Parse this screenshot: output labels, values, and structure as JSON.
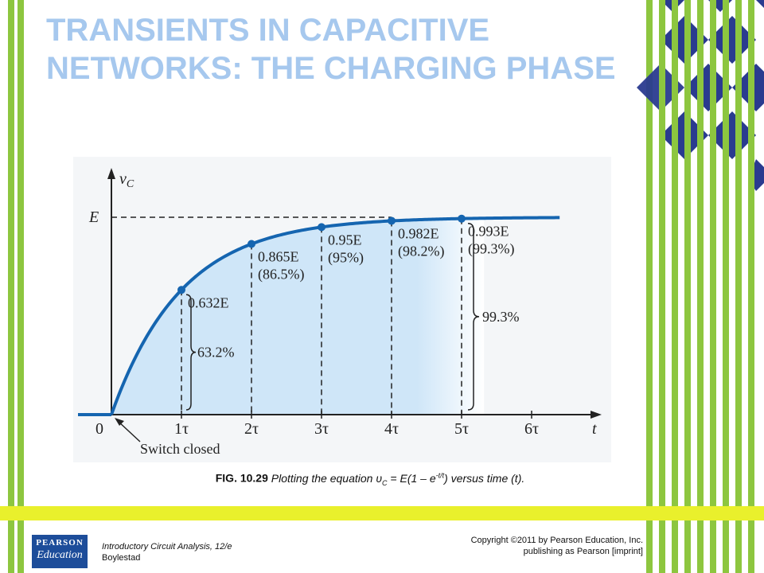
{
  "slide": {
    "title": "TRANSIENTS IN CAPACITIVE NETWORKS: THE CHARGING PHASE",
    "caption": {
      "fig_label": "FIG. 10.29",
      "text_before": " Plotting the equation υ",
      "sub": "C",
      "text_mid": " = E(1 – e",
      "sup": "-t/t",
      "text_after": ") versus time (t)."
    },
    "footer": {
      "book_title": "Introductory Circuit Analysis, 12/e",
      "author": "Boylestad",
      "copyright": "Copyright ©2011 by Pearson Education, Inc.",
      "publisher": "publishing as Pearson [imprint]"
    },
    "logo": {
      "line1": "PEARSON",
      "line2": "Education"
    }
  },
  "colors": {
    "title": "#a6c8ee",
    "curve": "#1565b0",
    "fill": "#cfe6f8",
    "accent_green": "#8dc63f",
    "accent_yellow": "#e9f02c",
    "accent_navy": "#2a3b8f",
    "logo_bg": "#1d4d9a"
  },
  "chart_data": {
    "type": "line",
    "function": "vC = E(1 - e^(-t/τ))",
    "x_label": "t",
    "y_label": "vC",
    "y_level_label": "E",
    "x_ticks": [
      "0",
      "1τ",
      "2τ",
      "3τ",
      "4τ",
      "5τ",
      "6τ"
    ],
    "x_range": [
      0,
      6.6
    ],
    "y_range": [
      0,
      1.2
    ],
    "points": [
      {
        "x": 1,
        "y": 0.632,
        "label": "0.632E",
        "percent": ""
      },
      {
        "x": 2,
        "y": 0.865,
        "label": "0.865E",
        "percent": "(86.5%)"
      },
      {
        "x": 3,
        "y": 0.95,
        "label": "0.95E",
        "percent": "(95%)"
      },
      {
        "x": 4,
        "y": 0.982,
        "label": "0.982E",
        "percent": "(98.2%)"
      },
      {
        "x": 5,
        "y": 0.993,
        "label": "0.993E",
        "percent": "(99.3%)"
      }
    ],
    "brace_labels": {
      "one_tau": "63.2%",
      "five_tau": "99.3%"
    },
    "annotation": "Switch closed"
  }
}
